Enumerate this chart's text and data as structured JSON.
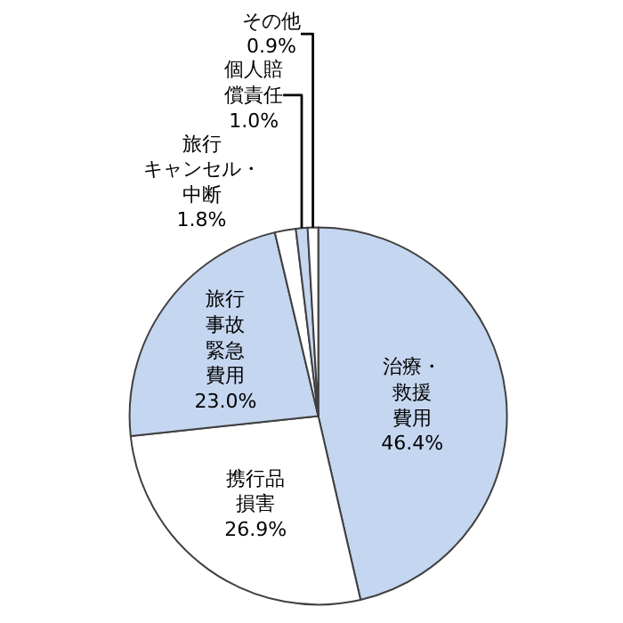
{
  "chart_data": {
    "type": "pie",
    "categories": [
      "治療・救援費用",
      "携行品損害",
      "旅行事故緊急費用",
      "旅行キャンセル・中断",
      "個人賠償責任",
      "その他"
    ],
    "values": [
      46.4,
      26.9,
      23.0,
      1.8,
      1.0,
      0.9
    ],
    "value_labels": [
      "46.4%",
      "26.9%",
      "23.0%",
      "1.8%",
      "1.0%",
      "0.9%"
    ],
    "colors": [
      "#c5d6f0",
      "#ffffff",
      "#c5d6f0",
      "#ffffff",
      "#c5d6f0",
      "#ffffff"
    ],
    "legend": false
  }
}
